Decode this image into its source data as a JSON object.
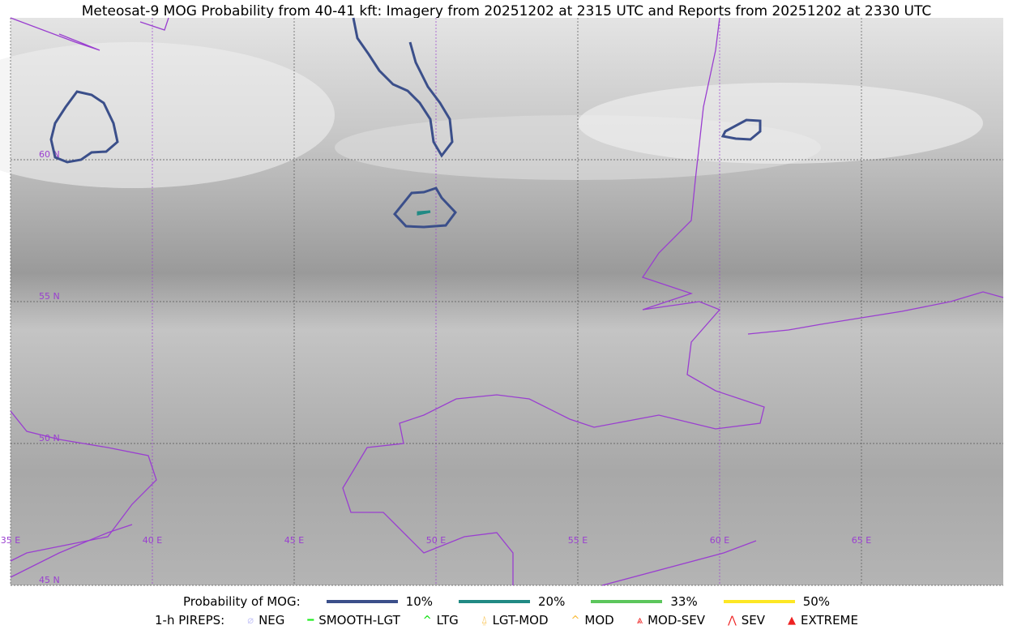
{
  "title": "Meteosat-9 MOG Probability from 40-41 kft: Imagery from 20251202 at 2315 UTC and Reports from 20251202 at 2330 UTC",
  "map": {
    "lon_labels": [
      "35 E",
      "40 E",
      "45 E",
      "50 E",
      "55 E",
      "60 E",
      "65 E"
    ],
    "lat_labels": [
      "60 N",
      "55 N",
      "50 N",
      "45 N"
    ],
    "extent": {
      "lon": [
        35,
        70
      ],
      "lat": [
        45,
        65
      ]
    },
    "coast_color": "#9a3fd0"
  },
  "legend": {
    "prob_label": "Probability of MOG:",
    "prob_items": [
      {
        "label": "10%",
        "color": "#3b4f8a"
      },
      {
        "label": "20%",
        "color": "#218a84"
      },
      {
        "label": "33%",
        "color": "#5cc65c"
      },
      {
        "label": "50%",
        "color": "#fde725"
      }
    ],
    "pirep_label": "1-h PIREPS:",
    "pirep_items": [
      {
        "label": "NEG",
        "color": "#c8c8f8",
        "icon": "neg-circle-icon"
      },
      {
        "label": "SMOOTH-LGT",
        "color": "#22ee22",
        "icon": "line-icon"
      },
      {
        "label": "LTG",
        "color": "#00dd00",
        "icon": "caret-icon"
      },
      {
        "label": "LGT-MOD",
        "color": "#f8b830",
        "icon": "caret-bar-icon"
      },
      {
        "label": "MOD",
        "color": "#f8b830",
        "icon": "caret-icon"
      },
      {
        "label": "MOD-SEV",
        "color": "#ee2222",
        "icon": "double-caret-bar-icon"
      },
      {
        "label": "SEV",
        "color": "#ee2222",
        "icon": "double-caret-icon"
      },
      {
        "label": "EXTREME",
        "color": "#ee2222",
        "icon": "triangle-icon"
      }
    ]
  }
}
